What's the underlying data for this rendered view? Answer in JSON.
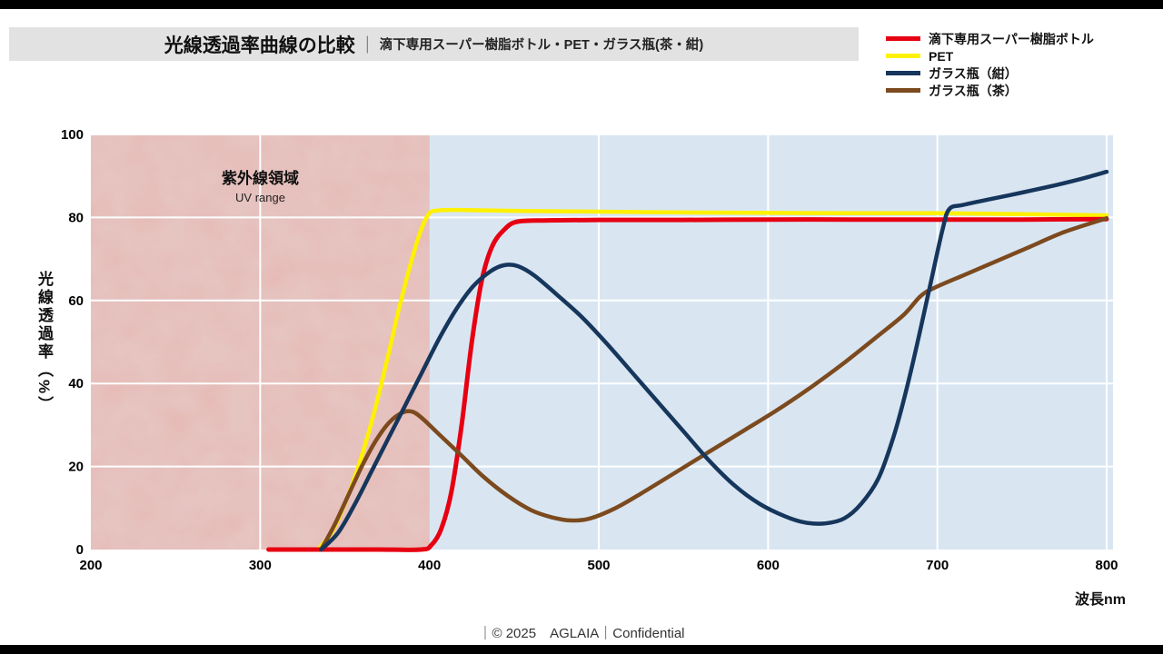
{
  "header": {
    "title": "光線透過率曲線の比較",
    "separator": "｜",
    "subtitle": "滴下専用スーパー樹脂ボトル・PET・ガラス瓶(茶・紺)"
  },
  "footer": {
    "text": "｜© 2025　AGLAIA｜Confidential"
  },
  "chart_data": {
    "type": "line",
    "title": "光線透過率曲線の比較",
    "xlabel": "波長nm",
    "ylabel": "光線透過率（%）",
    "xlim": [
      200,
      800
    ],
    "ylim": [
      0,
      100
    ],
    "x_ticks": [
      200,
      300,
      400,
      500,
      600,
      700,
      800
    ],
    "y_ticks": [
      0,
      20,
      40,
      60,
      80,
      100
    ],
    "x_gridlines": [
      300,
      500,
      600,
      700,
      800
    ],
    "grid": true,
    "legend_position": "top-right",
    "plot_bg": "#d9e6f2",
    "uv_region": {
      "label": "紫外線領域",
      "sublabel": "UV range",
      "x_range": [
        200,
        400
      ],
      "color": "#e7b5b0"
    },
    "draw_order": [
      1,
      0,
      3,
      2
    ],
    "series": [
      {
        "name": "滴下専用スーパー樹脂ボトル",
        "color": "#e60012",
        "width": 5,
        "points": [
          [
            305,
            0
          ],
          [
            340,
            0
          ],
          [
            370,
            0
          ],
          [
            395,
            0
          ],
          [
            401,
            1
          ],
          [
            407,
            5
          ],
          [
            413,
            14
          ],
          [
            419,
            30
          ],
          [
            425,
            50
          ],
          [
            431,
            65
          ],
          [
            437,
            73
          ],
          [
            444,
            77
          ],
          [
            452,
            79
          ],
          [
            470,
            79.3
          ],
          [
            500,
            79.4
          ],
          [
            550,
            79.4
          ],
          [
            600,
            79.5
          ],
          [
            650,
            79.5
          ],
          [
            700,
            79.5
          ],
          [
            750,
            79.5
          ],
          [
            800,
            79.6
          ]
        ]
      },
      {
        "name": "PET",
        "color": "#fff100",
        "width": 4.5,
        "points": [
          [
            334,
            0
          ],
          [
            342,
            4
          ],
          [
            350,
            11
          ],
          [
            358,
            20
          ],
          [
            366,
            31
          ],
          [
            374,
            44
          ],
          [
            382,
            58
          ],
          [
            389,
            69
          ],
          [
            395,
            77
          ],
          [
            400,
            81
          ],
          [
            406,
            81.7
          ],
          [
            420,
            81.8
          ],
          [
            450,
            81.6
          ],
          [
            500,
            81.4
          ],
          [
            550,
            81.2
          ],
          [
            600,
            81.1
          ],
          [
            650,
            81
          ],
          [
            700,
            81
          ],
          [
            750,
            80.8
          ],
          [
            800,
            80.5
          ]
        ]
      },
      {
        "name": "ガラス瓶（紺）",
        "color": "#16365c",
        "width": 4.5,
        "points": [
          [
            336,
            0
          ],
          [
            346,
            4
          ],
          [
            356,
            11
          ],
          [
            366,
            19
          ],
          [
            376,
            27
          ],
          [
            386,
            35
          ],
          [
            396,
            43
          ],
          [
            406,
            51
          ],
          [
            416,
            58
          ],
          [
            426,
            63.5
          ],
          [
            436,
            67
          ],
          [
            444,
            68.5
          ],
          [
            452,
            68.3
          ],
          [
            462,
            66
          ],
          [
            475,
            61.5
          ],
          [
            490,
            56
          ],
          [
            505,
            49.5
          ],
          [
            520,
            42.5
          ],
          [
            535,
            35.5
          ],
          [
            550,
            28.5
          ],
          [
            565,
            21.5
          ],
          [
            580,
            15.5
          ],
          [
            595,
            11
          ],
          [
            610,
            8
          ],
          [
            622,
            6.5
          ],
          [
            634,
            6.3
          ],
          [
            645,
            7.5
          ],
          [
            655,
            11
          ],
          [
            665,
            17
          ],
          [
            674,
            27
          ],
          [
            682,
            39
          ],
          [
            690,
            53
          ],
          [
            697,
            66
          ],
          [
            703,
            77
          ],
          [
            707,
            82
          ],
          [
            715,
            83
          ],
          [
            730,
            84.3
          ],
          [
            750,
            86
          ],
          [
            770,
            87.8
          ],
          [
            785,
            89.3
          ],
          [
            800,
            91
          ]
        ]
      },
      {
        "name": "ガラス瓶（茶）",
        "color": "#7c4a1e",
        "width": 4.5,
        "points": [
          [
            336,
            0
          ],
          [
            344,
            6
          ],
          [
            352,
            13
          ],
          [
            360,
            20
          ],
          [
            368,
            26
          ],
          [
            376,
            30.5
          ],
          [
            384,
            33
          ],
          [
            390,
            33.2
          ],
          [
            396,
            31.5
          ],
          [
            405,
            28
          ],
          [
            418,
            23
          ],
          [
            432,
            17.5
          ],
          [
            446,
            13
          ],
          [
            460,
            9.5
          ],
          [
            472,
            7.8
          ],
          [
            484,
            7
          ],
          [
            495,
            7.5
          ],
          [
            510,
            10
          ],
          [
            525,
            13.5
          ],
          [
            545,
            18.5
          ],
          [
            565,
            23.5
          ],
          [
            585,
            28.5
          ],
          [
            605,
            33.5
          ],
          [
            625,
            39
          ],
          [
            645,
            45
          ],
          [
            665,
            51.5
          ],
          [
            680,
            56.5
          ],
          [
            690,
            61
          ],
          [
            698,
            63
          ],
          [
            715,
            66
          ],
          [
            735,
            69.5
          ],
          [
            755,
            73
          ],
          [
            775,
            76.5
          ],
          [
            800,
            79.8
          ]
        ]
      }
    ]
  }
}
